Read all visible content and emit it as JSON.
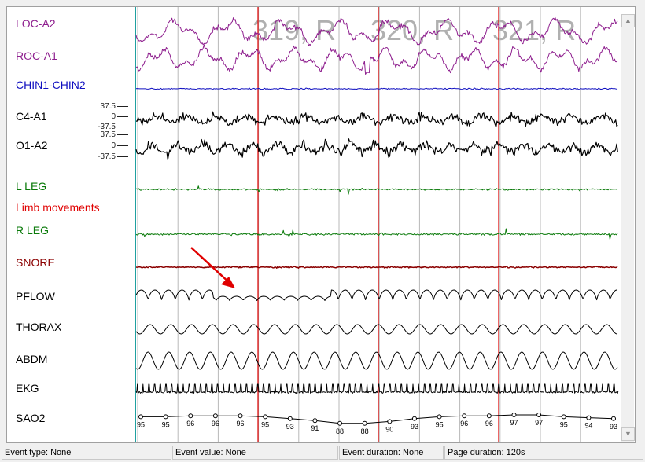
{
  "channels": [
    {
      "id": "loc",
      "label": "LOC-A2",
      "color": "#8e1e8e"
    },
    {
      "id": "roc",
      "label": "ROC-A1",
      "color": "#8e1e8e"
    },
    {
      "id": "chin",
      "label": "CHIN1-CHIN2",
      "color": "#1010c0"
    },
    {
      "id": "c4",
      "label": "C4-A1",
      "color": "#000000"
    },
    {
      "id": "o1",
      "label": "O1-A2",
      "color": "#000000"
    },
    {
      "id": "lleg",
      "label": "L LEG",
      "color": "#0a7a0a"
    },
    {
      "id": "limb",
      "label": "Limb movements",
      "color": "#e00000"
    },
    {
      "id": "rleg",
      "label": "R LEG",
      "color": "#0a7a0a"
    },
    {
      "id": "snore",
      "label": "SNORE",
      "color": "#8b0000"
    },
    {
      "id": "pflow",
      "label": "PFLOW",
      "color": "#000000"
    },
    {
      "id": "thorax",
      "label": "THORAX",
      "color": "#000000"
    },
    {
      "id": "abdm",
      "label": "ABDM",
      "color": "#000000"
    },
    {
      "id": "ekg",
      "label": "EKG",
      "color": "#000000"
    },
    {
      "id": "sao2",
      "label": "SAO2",
      "color": "#000000"
    }
  ],
  "eeg_scale": {
    "top": "37.5",
    "mid": "0",
    "bottom": "-37.5"
  },
  "epoch_markers": [
    "319, R",
    "320, R",
    "321, R"
  ],
  "sao2_values": [
    "95",
    "95",
    "96",
    "96",
    "96",
    "95",
    "93",
    "91",
    "88",
    "88",
    "90",
    "93",
    "95",
    "96",
    "96",
    "97",
    "97",
    "95",
    "94",
    "93"
  ],
  "status": {
    "event_type": "Event type: None",
    "event_value": "Event value: None",
    "event_duration": "Event duration: None",
    "page_duration": "Page duration: 120s"
  },
  "colors": {
    "grid": "#b8b8b8",
    "epoch_line": "#e00000",
    "start_line": "#20a0a0",
    "annotation_arrow": "#e00000"
  },
  "scrollbar": {
    "up": "▲",
    "down": "▼"
  }
}
